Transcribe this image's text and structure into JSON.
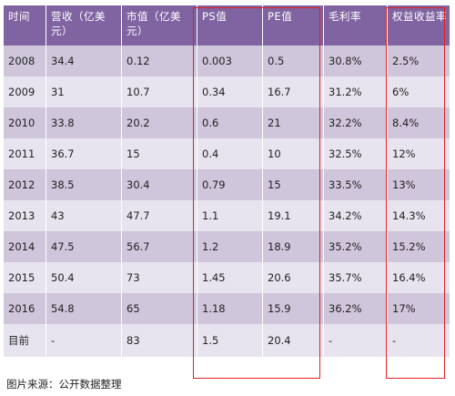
{
  "table": {
    "headers": [
      "时间",
      "营收（亿美元）",
      "市值（亿美元）",
      "PS值",
      "PE值",
      "毛利率",
      "权益收益率"
    ],
    "rows": [
      [
        "2008",
        "34.4",
        "0.12",
        "0.003",
        "0.5",
        "30.8%",
        "2.5%"
      ],
      [
        "2009",
        "31",
        "10.7",
        "0.34",
        "16.7",
        "31.2%",
        "6%"
      ],
      [
        "2010",
        "33.8",
        "20.2",
        "0.6",
        "21",
        "32.2%",
        "8.4%"
      ],
      [
        "2011",
        "36.7",
        "15",
        "0.4",
        "10",
        "32.5%",
        "12%"
      ],
      [
        "2012",
        "38.5",
        "30.4",
        "0.79",
        "15",
        "33.5%",
        "13%"
      ],
      [
        "2013",
        "43",
        "47.7",
        "1.1",
        "19.1",
        "34.2%",
        "14.3%"
      ],
      [
        "2014",
        "47.5",
        "56.7",
        "1.2",
        "18.9",
        "35.2%",
        "15.2%"
      ],
      [
        "2015",
        "50.4",
        "73",
        "1.45",
        "20.6",
        "35.7%",
        "16.4%"
      ],
      [
        "2016",
        "54.8",
        "65",
        "1.18",
        "15.9",
        "36.2%",
        "17%"
      ],
      [
        "目前",
        "-",
        "83",
        "1.5",
        "20.4",
        "-",
        "-"
      ]
    ]
  },
  "caption": "图片来源：公开数据整理",
  "colors": {
    "header_bg": "#8064a2",
    "row_dark": "#cfc6dc",
    "row_light": "#e8e4ef",
    "highlight_border": "#e02020"
  }
}
